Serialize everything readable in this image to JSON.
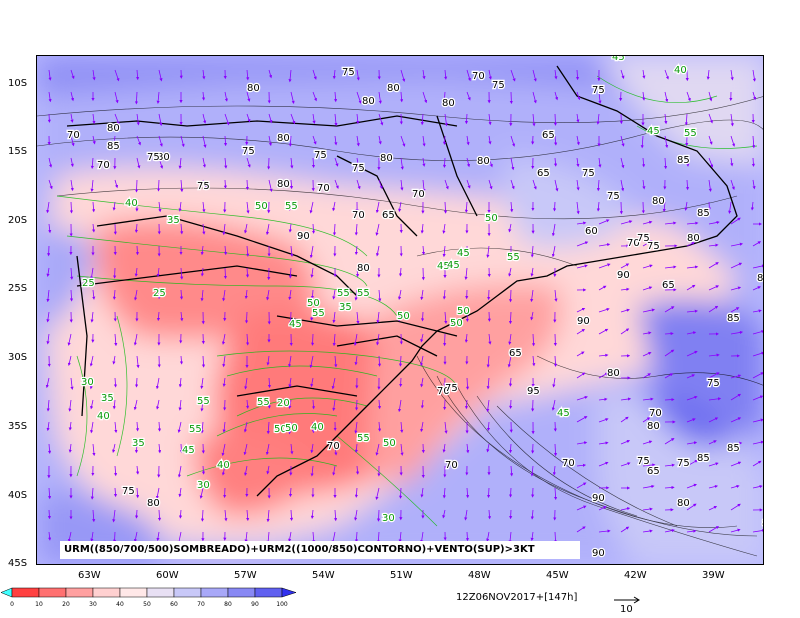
{
  "map": {
    "caption": "URM((850/700/500)SOMBREADO)+URM2((1000/850)CONTORNO)+VENTO(SUP)>3KT",
    "timestamp": "12Z06NOV2017+[147h]",
    "reference_vector": "10",
    "lat_labels": [
      "10S",
      "15S",
      "20S",
      "25S",
      "30S",
      "35S",
      "40S",
      "45S"
    ],
    "lon_labels": [
      "63W",
      "60W",
      "57W",
      "54W",
      "51W",
      "48W",
      "45W",
      "42W",
      "39W"
    ],
    "colorbar": {
      "ticks": [
        "0",
        "10",
        "20",
        "30",
        "40",
        "50",
        "60",
        "70",
        "80",
        "90",
        "100"
      ],
      "colors": [
        "#ff4040",
        "#ff7070",
        "#ffa0a0",
        "#ffd0d0",
        "#ffe8e8",
        "#e8e0f4",
        "#c8c8f8",
        "#a8a8f8",
        "#8888f4",
        "#6060f0"
      ],
      "low_end_color": "#40ffff"
    },
    "contour_labels_black": [
      "75",
      "70",
      "80",
      "80",
      "75",
      "80",
      "80",
      "70",
      "80",
      "80",
      "75",
      "75",
      "80",
      "65",
      "75",
      "85",
      "80",
      "70",
      "75",
      "75",
      "80",
      "80",
      "70",
      "75",
      "70",
      "65",
      "70",
      "65",
      "75",
      "75",
      "80",
      "85",
      "90",
      "80",
      "75",
      "65",
      "80",
      "70",
      "75",
      "85",
      "85",
      "90",
      "75",
      "70",
      "65",
      "90",
      "80",
      "90",
      "75",
      "80",
      "85",
      "90",
      "80",
      "95",
      "65",
      "85",
      "75",
      "80",
      "70",
      "75",
      "70",
      "70",
      "70",
      "75",
      "85",
      "80",
      "60"
    ],
    "contour_labels_green": [
      "45",
      "40",
      "45",
      "55",
      "50",
      "40",
      "55",
      "35",
      "50",
      "55",
      "50",
      "50",
      "45",
      "45",
      "55",
      "45",
      "55",
      "25",
      "30",
      "55",
      "35",
      "50",
      "40",
      "35",
      "50",
      "40",
      "55",
      "25",
      "55",
      "30",
      "20",
      "55",
      "45",
      "50",
      "55",
      "50",
      "45",
      "35",
      "30",
      "50",
      "45",
      "40"
    ]
  }
}
